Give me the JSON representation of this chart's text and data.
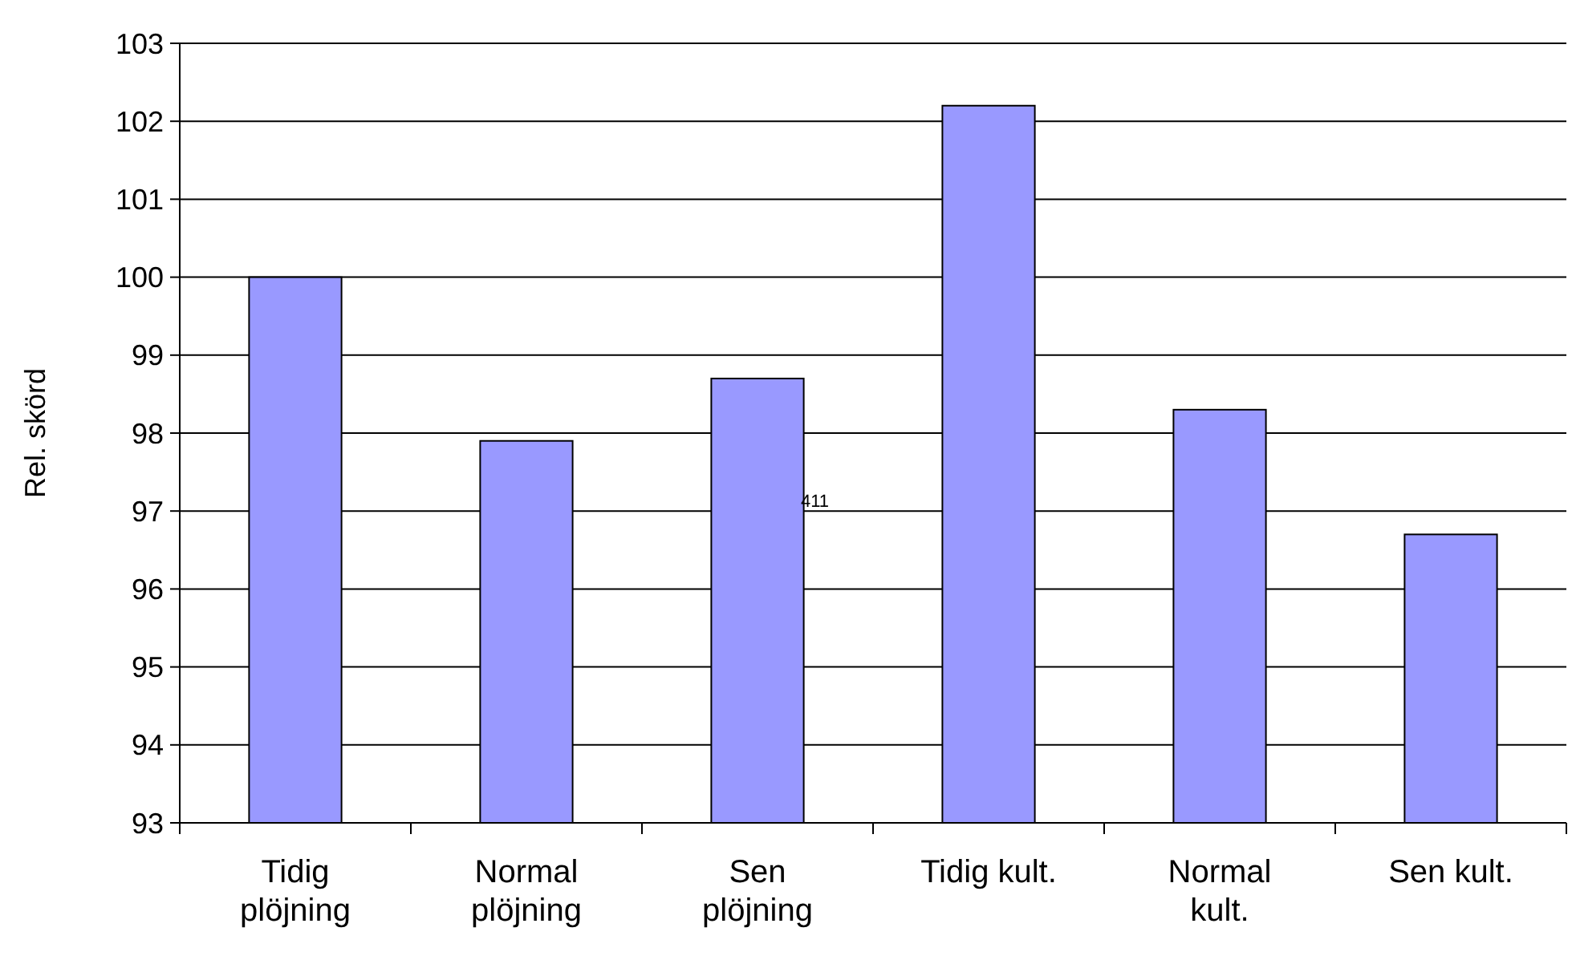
{
  "chart_data": {
    "type": "bar",
    "ylabel": "Rel. skörd",
    "categories": [
      "Tidig\nplöjning",
      "Normal\nplöjning",
      "Sen\nplöjning",
      "Tidig kult.",
      "Normal\nkult.",
      "Sen kult."
    ],
    "values": [
      100,
      97.9,
      98.7,
      102.2,
      98.3,
      96.7
    ],
    "color": "#9999ff",
    "ylim": [
      93,
      103
    ],
    "yticks": [
      93,
      94,
      95,
      96,
      97,
      98,
      99,
      100,
      101,
      102,
      103
    ],
    "grid": "y",
    "annotations": [
      "411"
    ]
  }
}
